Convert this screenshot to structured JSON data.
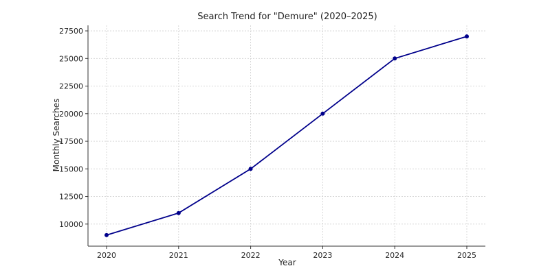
{
  "chart_data": {
    "type": "line",
    "title": "Search Trend for \"Demure\" (2020–2025)",
    "xlabel": "Year",
    "ylabel": "Monthly Searches",
    "x": [
      "2020",
      "2021",
      "2022",
      "2023",
      "2024",
      "2025"
    ],
    "series": [
      {
        "values": [
          9000,
          11000,
          15000,
          20000,
          25000,
          27000
        ],
        "color": "#00008b",
        "marker": "circle"
      }
    ],
    "yticks": [
      10000,
      12500,
      15000,
      17500,
      20000,
      22500,
      25000,
      27500
    ],
    "ylim": [
      8000,
      28000
    ],
    "grid": true,
    "legend": "none"
  }
}
